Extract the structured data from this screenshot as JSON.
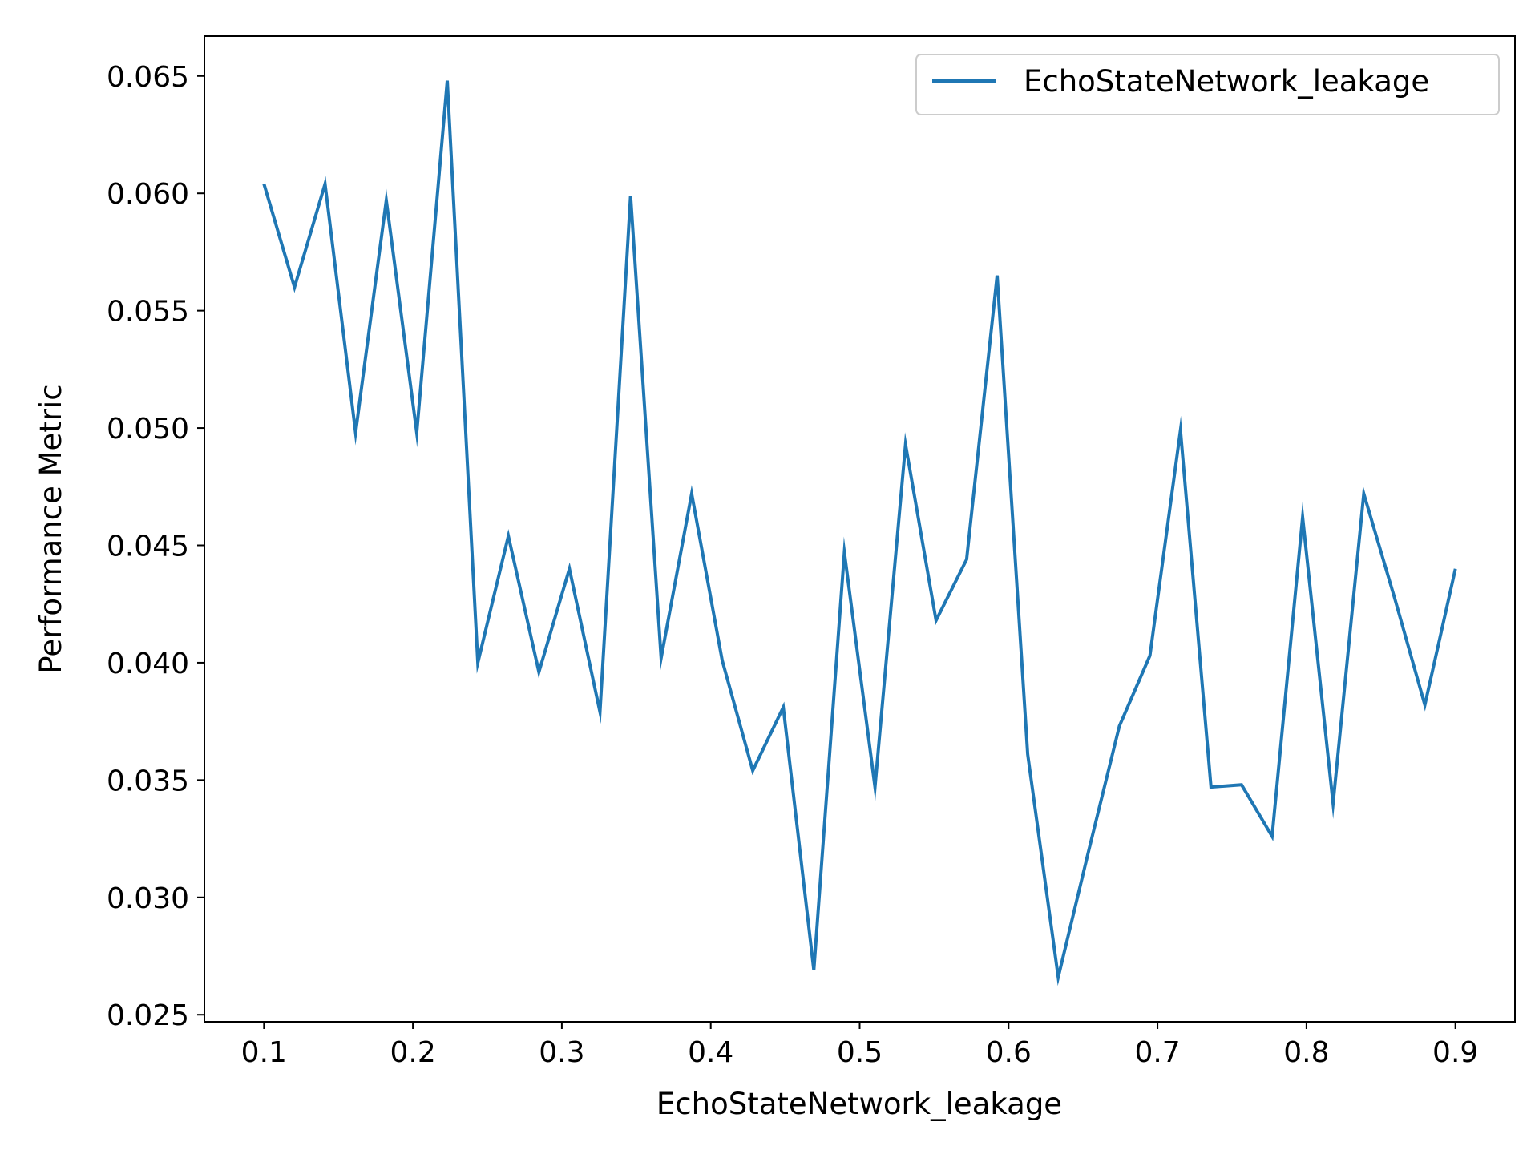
{
  "chart_data": {
    "type": "line",
    "xlabel": "EchoStateNetwork_leakage",
    "ylabel": "Performance Metric",
    "xlim": [
      0.06,
      0.94
    ],
    "ylim": [
      0.0247,
      0.0667
    ],
    "xticks": [
      0.1,
      0.2,
      0.3,
      0.4,
      0.5,
      0.6,
      0.7,
      0.8,
      0.9
    ],
    "xtick_labels": [
      "0.1",
      "0.2",
      "0.3",
      "0.4",
      "0.5",
      "0.6",
      "0.7",
      "0.8",
      "0.9"
    ],
    "yticks": [
      0.025,
      0.03,
      0.035,
      0.04,
      0.045,
      0.05,
      0.055,
      0.06,
      0.065
    ],
    "ytick_labels": [
      "0.025",
      "0.030",
      "0.035",
      "0.040",
      "0.045",
      "0.050",
      "0.055",
      "0.060",
      "0.065"
    ],
    "grid": false,
    "legend_position": "top-right",
    "series": [
      {
        "name": "EchoStateNetwork_leakage",
        "color": "#1f77b4",
        "x": [
          0.1,
          0.1205,
          0.141,
          0.1615,
          0.1821,
          0.2026,
          0.2231,
          0.2436,
          0.2641,
          0.2846,
          0.3051,
          0.3256,
          0.3462,
          0.3667,
          0.3872,
          0.4077,
          0.4282,
          0.4487,
          0.4692,
          0.4897,
          0.5103,
          0.5308,
          0.5513,
          0.5718,
          0.5923,
          0.6128,
          0.6333,
          0.6538,
          0.6744,
          0.6949,
          0.7154,
          0.7359,
          0.7564,
          0.7769,
          0.7974,
          0.8179,
          0.8385,
          0.859,
          0.8795,
          0.9
        ],
        "y": [
          0.0604,
          0.056,
          0.0604,
          0.0498,
          0.0597,
          0.0498,
          0.0648,
          0.04,
          0.0454,
          0.0396,
          0.044,
          0.0379,
          0.0599,
          0.0402,
          0.0472,
          0.0401,
          0.0354,
          0.0381,
          0.0269,
          0.0447,
          0.0347,
          0.0493,
          0.0418,
          0.0444,
          0.0565,
          0.0361,
          0.0266,
          0.032,
          0.0373,
          0.0403,
          0.0499,
          0.0347,
          0.0348,
          0.0326,
          0.0462,
          0.034,
          0.0472,
          0.0428,
          0.0382,
          0.044
        ]
      }
    ]
  }
}
